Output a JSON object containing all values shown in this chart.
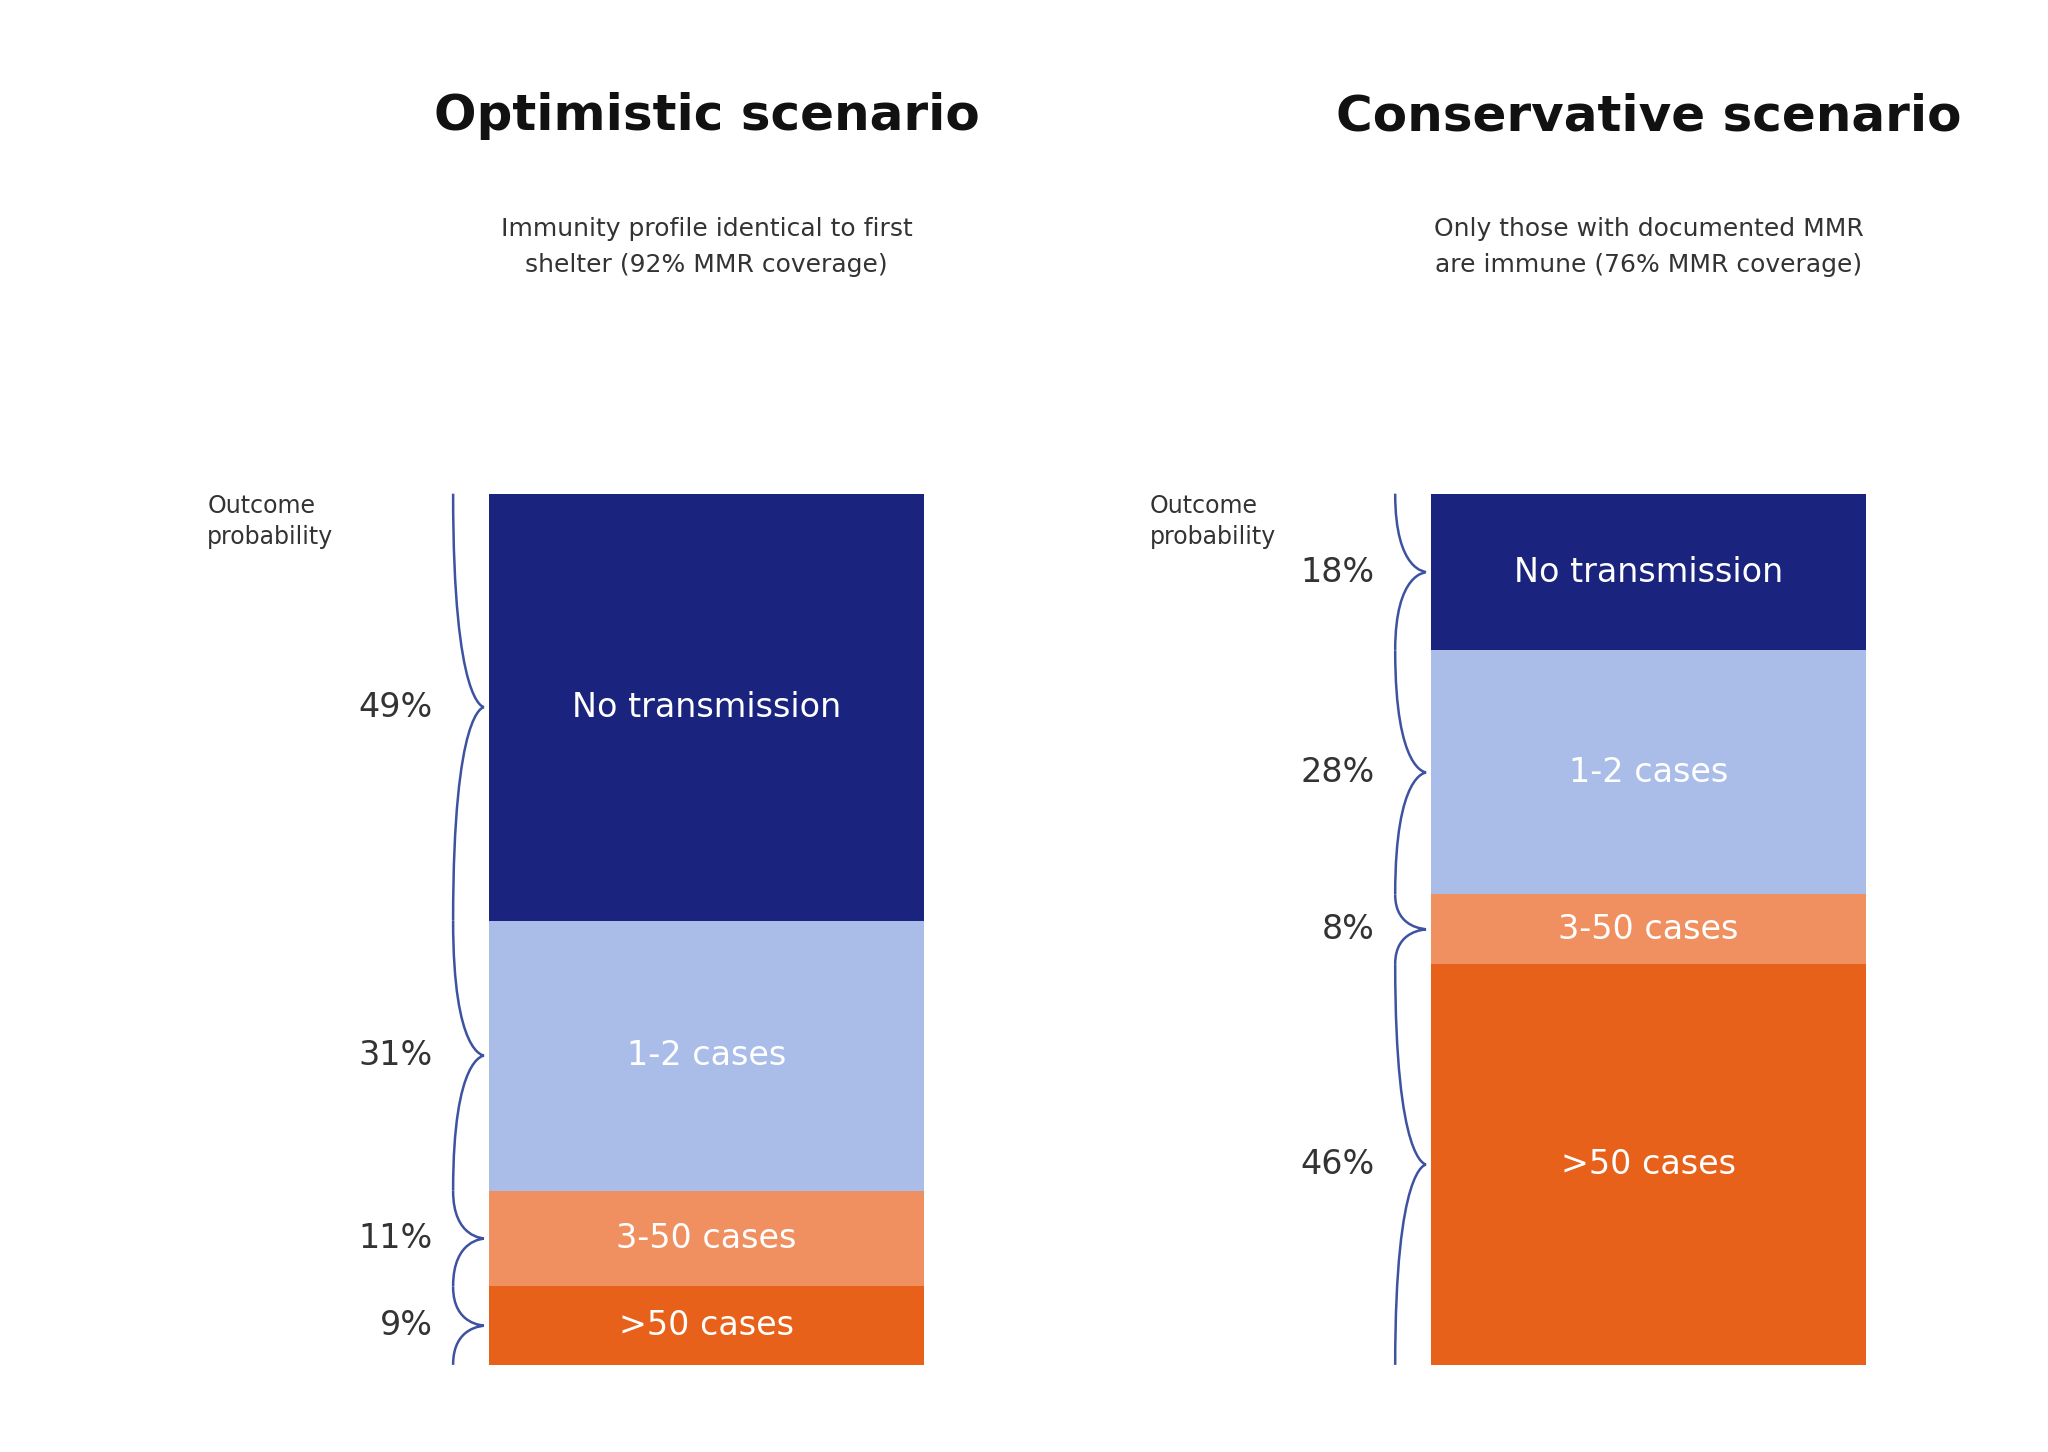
{
  "optimistic": {
    "title": "Optimistic scenario",
    "subtitle": "Immunity profile identical to first\nshelter (92% MMR coverage)",
    "segments": [
      {
        "label": ">50 cases",
        "pct": 9,
        "color": "#E8611A"
      },
      {
        "label": "3-50 cases",
        "pct": 11,
        "color": "#F09060"
      },
      {
        "label": "1-2 cases",
        "pct": 31,
        "color": "#AABCE8"
      },
      {
        "label": "No transmission",
        "pct": 49,
        "color": "#1A237E"
      }
    ]
  },
  "conservative": {
    "title": "Conservative scenario",
    "subtitle": "Only those with documented MMR\nare immune (76% MMR coverage)",
    "segments": [
      {
        "label": ">50 cases",
        "pct": 46,
        "color": "#E8611A"
      },
      {
        "label": "3-50 cases",
        "pct": 8,
        "color": "#F09060"
      },
      {
        "label": "1-2 cases",
        "pct": 28,
        "color": "#AABCE8"
      },
      {
        "label": "No transmission",
        "pct": 18,
        "color": "#1A237E"
      }
    ]
  },
  "background_color": "#FFFFFF",
  "text_color_dark": "#333333",
  "text_color_white": "#FFFFFF",
  "title_fontsize": 36,
  "subtitle_fontsize": 18,
  "label_fontsize": 24,
  "pct_fontsize": 24,
  "outcome_label": "Outcome\nprobability",
  "outcome_fontsize": 17,
  "brace_color": "#3D52A0"
}
